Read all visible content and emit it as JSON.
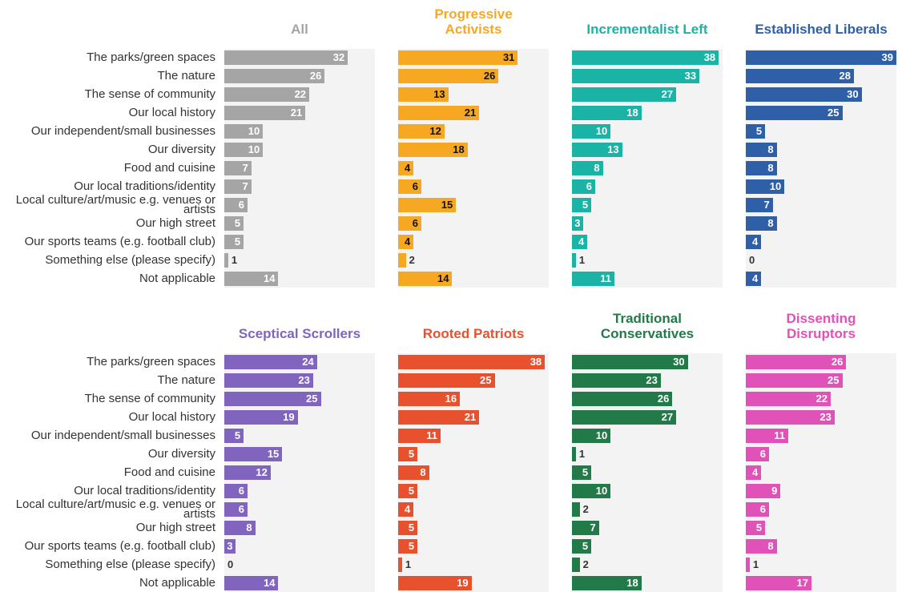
{
  "chart_data": [
    {
      "type": "bar",
      "title": "All",
      "color": "#a5a5a5",
      "xlim": [
        0,
        39
      ],
      "categories": [
        "The parks/green spaces",
        "The nature",
        "The sense of community",
        "Our local history",
        "Our independent/small businesses",
        "Our diversity",
        "Food and cuisine",
        "Our local traditions/identity",
        "Local culture/art/music e.g. venues or artists",
        "Our high street",
        "Our sports teams (e.g. football club)",
        "Something else (please specify)",
        "Not applicable"
      ],
      "values": [
        32,
        26,
        22,
        21,
        10,
        10,
        7,
        7,
        6,
        5,
        5,
        1,
        14
      ]
    },
    {
      "type": "bar",
      "title": "Progressive Activists",
      "color": "#f7a823",
      "xlim": [
        0,
        39
      ],
      "values": [
        31,
        26,
        13,
        21,
        12,
        18,
        4,
        6,
        15,
        6,
        4,
        2,
        14
      ]
    },
    {
      "type": "bar",
      "title": "Incrementalist Left",
      "color": "#1ab3a5",
      "xlim": [
        0,
        39
      ],
      "values": [
        38,
        33,
        27,
        18,
        10,
        13,
        8,
        6,
        5,
        3,
        4,
        1,
        11
      ]
    },
    {
      "type": "bar",
      "title": "Established Liberals",
      "color": "#2f5fa7",
      "xlim": [
        0,
        39
      ],
      "values": [
        39,
        28,
        30,
        25,
        5,
        8,
        8,
        10,
        7,
        8,
        4,
        0,
        4
      ]
    },
    {
      "type": "bar",
      "title": "Sceptical Scrollers",
      "color": "#8064be",
      "xlim": [
        0,
        39
      ],
      "categories": [
        "The parks/green spaces",
        "The nature",
        "The sense of community",
        "Our local history",
        "Our independent/small businesses",
        "Our diversity",
        "Food and cuisine",
        "Our local traditions/identity",
        "Local culture/art/music e.g. venues or artists",
        "Our high street",
        "Our sports teams (e.g. football club)",
        "Something else (please specify)",
        "Not applicable"
      ],
      "values": [
        24,
        23,
        25,
        19,
        5,
        15,
        12,
        6,
        6,
        8,
        3,
        0,
        14
      ]
    },
    {
      "type": "bar",
      "title": "Rooted Patriots",
      "color": "#e8512e",
      "xlim": [
        0,
        39
      ],
      "values": [
        38,
        25,
        16,
        21,
        11,
        5,
        8,
        5,
        4,
        5,
        5,
        1,
        19
      ]
    },
    {
      "type": "bar",
      "title": "Traditional Conservatives",
      "color": "#217a48",
      "xlim": [
        0,
        39
      ],
      "values": [
        30,
        23,
        26,
        27,
        10,
        1,
        5,
        10,
        2,
        7,
        5,
        2,
        18
      ]
    },
    {
      "type": "bar",
      "title": "Dissenting Disruptors",
      "color": "#e052b8",
      "xlim": [
        0,
        39
      ],
      "values": [
        26,
        25,
        22,
        23,
        11,
        6,
        4,
        9,
        6,
        5,
        8,
        1,
        17
      ]
    }
  ]
}
